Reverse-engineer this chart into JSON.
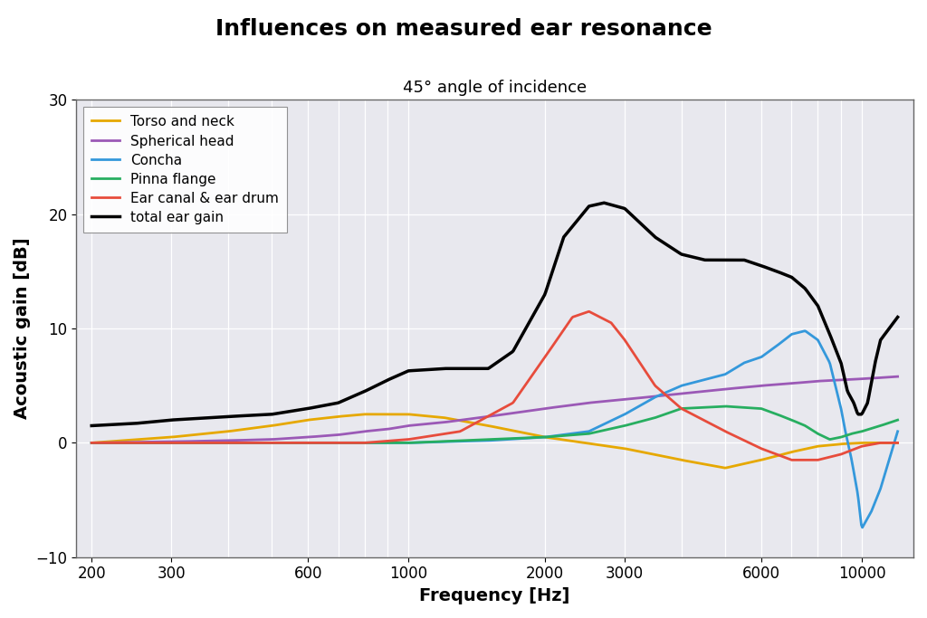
{
  "title": "Influences on measured ear resonance",
  "subtitle": "45° angle of incidence",
  "xlabel": "Frequency [Hz]",
  "ylabel": "Acoustic gain [dB]",
  "ylim": [
    -10,
    30
  ],
  "yticks": [
    -10,
    0,
    10,
    20,
    30
  ],
  "xticks": [
    200,
    300,
    600,
    1000,
    2000,
    3000,
    6000,
    10000
  ],
  "xticklabels": [
    "200",
    "300",
    "600",
    "1000",
    "2000",
    "3000",
    "6000",
    "10000"
  ],
  "xmin": 185,
  "xmax": 13000,
  "background_color": "#e8e8ee",
  "grid_color": "#ffffff",
  "series": {
    "torso": {
      "label": "Torso and neck",
      "color": "#e6a800",
      "lw": 2.0,
      "freqs": [
        200,
        300,
        400,
        500,
        600,
        700,
        800,
        900,
        1000,
        1200,
        1500,
        2000,
        3000,
        4000,
        5000,
        6000,
        7000,
        8000,
        9000,
        10000,
        11000,
        12000
      ],
      "gains": [
        0.0,
        0.5,
        1.0,
        1.5,
        2.0,
        2.3,
        2.5,
        2.5,
        2.5,
        2.2,
        1.5,
        0.5,
        -0.5,
        -1.5,
        -2.2,
        -1.5,
        -0.8,
        -0.3,
        -0.1,
        0.0,
        0.0,
        0.0
      ]
    },
    "spherical": {
      "label": "Spherical head",
      "color": "#9b59b6",
      "lw": 2.0,
      "freqs": [
        200,
        300,
        400,
        500,
        600,
        700,
        800,
        900,
        1000,
        1200,
        1500,
        2000,
        2500,
        3000,
        4000,
        5000,
        6000,
        7000,
        8000,
        9000,
        10000,
        11000,
        12000
      ],
      "gains": [
        0.0,
        0.1,
        0.2,
        0.3,
        0.5,
        0.7,
        1.0,
        1.2,
        1.5,
        1.8,
        2.3,
        3.0,
        3.5,
        3.8,
        4.3,
        4.7,
        5.0,
        5.2,
        5.4,
        5.5,
        5.6,
        5.7,
        5.8
      ]
    },
    "concha": {
      "label": "Concha",
      "color": "#3498db",
      "lw": 2.0,
      "freqs": [
        200,
        400,
        600,
        800,
        1000,
        1500,
        2000,
        2500,
        3000,
        3500,
        4000,
        5000,
        5500,
        6000,
        6500,
        7000,
        7500,
        8000,
        8500,
        9000,
        9200,
        9500,
        9800,
        10000,
        10500,
        11000,
        12000
      ],
      "gains": [
        0.0,
        0.0,
        0.0,
        0.0,
        0.0,
        0.2,
        0.5,
        1.0,
        2.5,
        4.0,
        5.0,
        6.0,
        7.0,
        7.5,
        8.5,
        9.5,
        9.8,
        9.0,
        7.0,
        3.0,
        1.0,
        -1.5,
        -4.5,
        -7.5,
        -6.0,
        -4.0,
        1.0
      ]
    },
    "pinna": {
      "label": "Pinna flange",
      "color": "#27ae60",
      "lw": 2.0,
      "freqs": [
        200,
        400,
        600,
        800,
        1000,
        1500,
        2000,
        2500,
        3000,
        3500,
        4000,
        5000,
        6000,
        6500,
        7000,
        7500,
        8000,
        8500,
        9000,
        9500,
        10000,
        11000,
        12000
      ],
      "gains": [
        0.0,
        0.0,
        0.0,
        0.0,
        0.0,
        0.3,
        0.5,
        0.8,
        1.5,
        2.2,
        3.0,
        3.2,
        3.0,
        2.5,
        2.0,
        1.5,
        0.8,
        0.3,
        0.5,
        0.8,
        1.0,
        1.5,
        2.0
      ]
    },
    "earcanal": {
      "label": "Ear canal & ear drum",
      "color": "#e74c3c",
      "lw": 2.0,
      "freqs": [
        200,
        400,
        600,
        800,
        1000,
        1300,
        1700,
        2000,
        2300,
        2500,
        2800,
        3000,
        3500,
        4000,
        5000,
        6000,
        7000,
        8000,
        9000,
        10000,
        11000,
        12000
      ],
      "gains": [
        0.0,
        0.0,
        0.0,
        0.0,
        0.3,
        1.0,
        3.5,
        7.5,
        11.0,
        11.5,
        10.5,
        9.0,
        5.0,
        3.0,
        1.0,
        -0.5,
        -1.5,
        -1.5,
        -1.0,
        -0.3,
        0.0,
        0.0
      ]
    },
    "total": {
      "label": "total ear gain",
      "color": "#000000",
      "lw": 2.5,
      "freqs": [
        200,
        250,
        300,
        400,
        500,
        600,
        700,
        800,
        900,
        1000,
        1200,
        1500,
        1700,
        2000,
        2200,
        2500,
        2700,
        3000,
        3500,
        4000,
        4500,
        5000,
        5500,
        6000,
        6500,
        7000,
        7500,
        8000,
        8500,
        9000,
        9300,
        9600,
        9800,
        10000,
        10300,
        10700,
        11000,
        12000
      ],
      "gains": [
        1.5,
        1.7,
        2.0,
        2.3,
        2.5,
        3.0,
        3.5,
        4.5,
        5.5,
        6.3,
        6.5,
        6.5,
        8.0,
        13.0,
        18.0,
        20.7,
        21.0,
        20.5,
        18.0,
        16.5,
        16.0,
        16.0,
        16.0,
        15.5,
        15.0,
        14.5,
        13.5,
        12.0,
        9.5,
        7.0,
        4.5,
        3.5,
        2.5,
        2.5,
        3.5,
        7.0,
        9.0,
        11.0
      ]
    }
  }
}
